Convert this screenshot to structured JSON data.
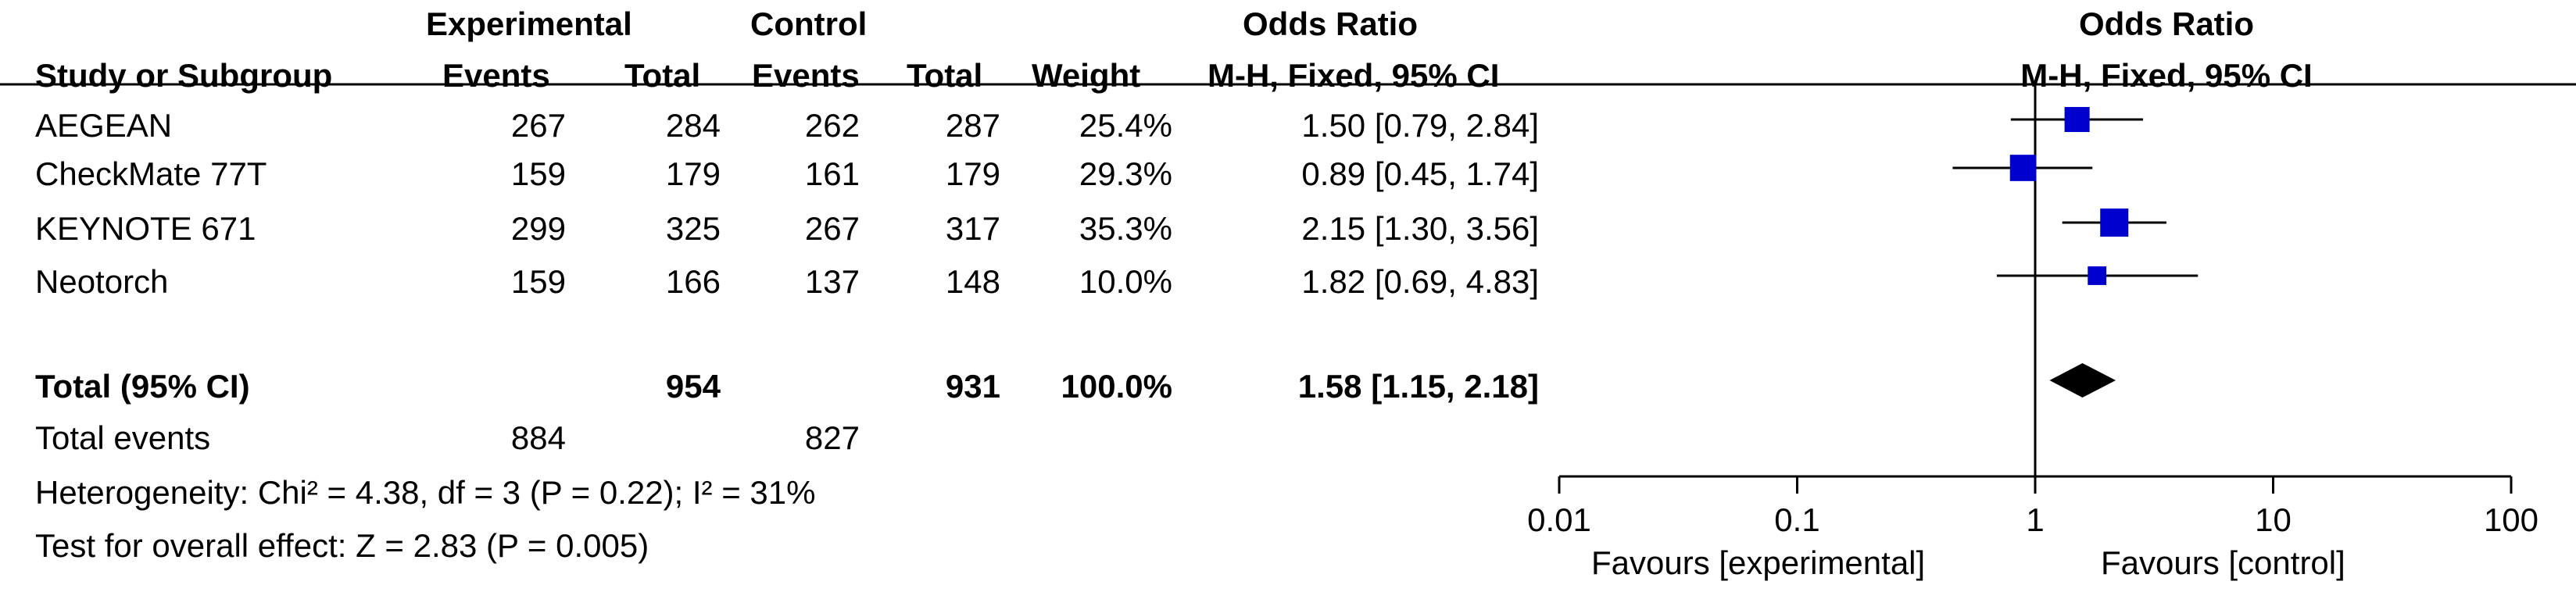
{
  "header": {
    "experimental_group": "Experimental",
    "control_group": "Control",
    "odds_ratio_group": "Odds Ratio",
    "study_col": "Study or Subgroup",
    "events_col": "Events",
    "total_col": "Total",
    "control_events_col": "Events",
    "control_total_col": "Total",
    "weight_col": "Weight",
    "ci_col": "M-H, Fixed, 95% CI",
    "plot_title": "Odds Ratio",
    "plot_subtitle": "M-H, Fixed, 95% CI"
  },
  "studies": [
    {
      "name": "AEGEAN",
      "exp_events": "267",
      "exp_total": "284",
      "ctl_events": "262",
      "ctl_total": "287",
      "weight": "25.4%",
      "ci_text": "1.50 [0.79, 2.84]"
    },
    {
      "name": "CheckMate 77T",
      "exp_events": "159",
      "exp_total": "179",
      "ctl_events": "161",
      "ctl_total": "179",
      "weight": "29.3%",
      "ci_text": "0.89 [0.45, 1.74]"
    },
    {
      "name": "KEYNOTE 671",
      "exp_events": "299",
      "exp_total": "325",
      "ctl_events": "267",
      "ctl_total": "317",
      "weight": "35.3%",
      "ci_text": "2.15 [1.30, 3.56]"
    },
    {
      "name": "Neotorch",
      "exp_events": "159",
      "exp_total": "166",
      "ctl_events": "137",
      "ctl_total": "148",
      "weight": "10.0%",
      "ci_text": "1.82 [0.69, 4.83]"
    }
  ],
  "total": {
    "label": "Total (95% CI)",
    "exp_total": "954",
    "ctl_total": "931",
    "weight": "100.0%",
    "ci_text": "1.58 [1.15, 2.18]"
  },
  "events": {
    "label": "Total events",
    "exp": "884",
    "ctl": "827"
  },
  "heterogeneity": "Heterogeneity: Chi² = 4.38, df = 3 (P = 0.22); I² = 31%",
  "overall_effect": "Test for overall effect: Z = 2.83 (P = 0.005)",
  "axis": {
    "ticks": [
      "0.01",
      "0.1",
      "1",
      "10",
      "100"
    ],
    "left_label": "Favours [experimental]",
    "right_label": "Favours [control]"
  },
  "colors": {
    "marker": "#0000cc",
    "line": "#000000",
    "diamond": "#000000"
  },
  "chart_data": {
    "type": "scatter",
    "scale": "log",
    "xlim": [
      0.01,
      100
    ],
    "reference_line": 1,
    "x_ticks": [
      0.01,
      0.1,
      1,
      10,
      100
    ],
    "studies": [
      {
        "name": "AEGEAN",
        "or": 1.5,
        "lower": 0.79,
        "upper": 2.84,
        "weight": 25.4
      },
      {
        "name": "CheckMate 77T",
        "or": 0.89,
        "lower": 0.45,
        "upper": 1.74,
        "weight": 29.3
      },
      {
        "name": "KEYNOTE 671",
        "or": 2.15,
        "lower": 1.3,
        "upper": 3.56,
        "weight": 35.3
      },
      {
        "name": "Neotorch",
        "or": 1.82,
        "lower": 0.69,
        "upper": 4.83,
        "weight": 10.0
      }
    ],
    "pooled": {
      "name": "Total (95% CI)",
      "or": 1.58,
      "lower": 1.15,
      "upper": 2.18
    }
  }
}
